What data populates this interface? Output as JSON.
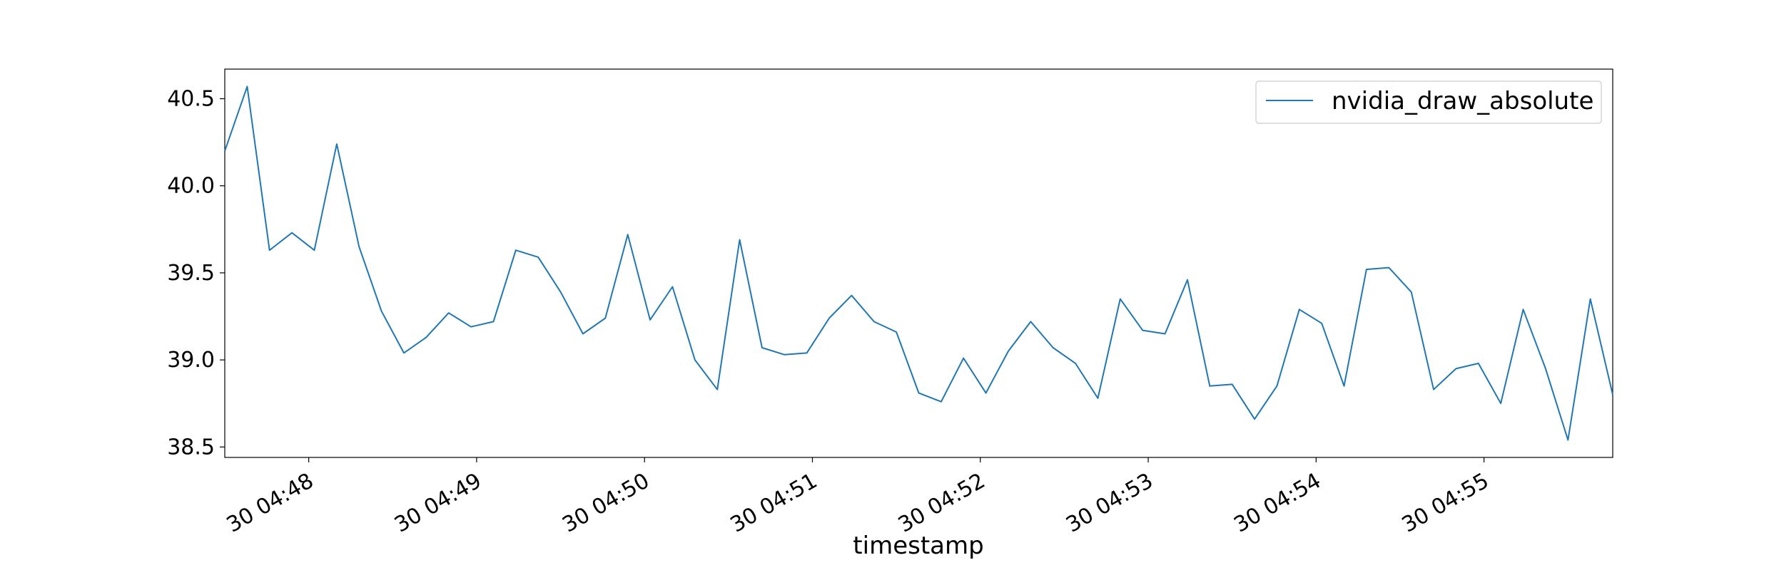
{
  "chart_data": {
    "type": "line",
    "title": "",
    "xlabel": "timestamp",
    "ylabel": "",
    "x_tick_labels": [
      "30 04:48",
      "30 04:49",
      "30 04:50",
      "30 04:51",
      "30 04:52",
      "30 04:53",
      "30 04:54",
      "30 04:55"
    ],
    "y_tick_labels": [
      "38.5",
      "39.0",
      "39.5",
      "40.0",
      "40.5"
    ],
    "y_ticks": [
      38.5,
      39.0,
      39.5,
      40.0,
      40.5
    ],
    "ylim": [
      38.44,
      40.67
    ],
    "legend": {
      "position": "top-right",
      "entries": [
        "nvidia_draw_absolute"
      ]
    },
    "grid": false,
    "line_color": "#1f77b4",
    "series": [
      {
        "name": "nvidia_draw_absolute",
        "x": [
          "04:47:30",
          "04:47:38",
          "04:47:46",
          "04:47:54",
          "04:48:02",
          "04:48:10",
          "04:48:18",
          "04:48:26",
          "04:48:34",
          "04:48:42",
          "04:48:50",
          "04:48:58",
          "04:49:06",
          "04:49:14",
          "04:49:22",
          "04:49:30",
          "04:49:38",
          "04:49:46",
          "04:49:54",
          "04:50:02",
          "04:50:10",
          "04:50:18",
          "04:50:26",
          "04:50:34",
          "04:50:42",
          "04:50:50",
          "04:50:58",
          "04:51:06",
          "04:51:14",
          "04:51:22",
          "04:51:30",
          "04:51:38",
          "04:51:46",
          "04:51:54",
          "04:52:02",
          "04:52:10",
          "04:52:18",
          "04:52:26",
          "04:52:34",
          "04:52:42",
          "04:52:50",
          "04:52:58",
          "04:53:06",
          "04:53:14",
          "04:53:22",
          "04:53:30",
          "04:53:38",
          "04:53:46",
          "04:53:54",
          "04:54:02",
          "04:54:10",
          "04:54:18",
          "04:54:26",
          "04:54:34",
          "04:54:42",
          "04:54:50",
          "04:54:58",
          "04:55:06",
          "04:55:14",
          "04:55:22",
          "04:55:30",
          "04:55:38",
          "04:55:46"
        ],
        "values": [
          40.2,
          40.57,
          39.63,
          39.73,
          39.63,
          40.24,
          39.65,
          39.28,
          39.04,
          39.13,
          39.27,
          39.19,
          39.22,
          39.63,
          39.59,
          39.39,
          39.15,
          39.24,
          39.72,
          39.23,
          39.42,
          39.0,
          38.83,
          39.69,
          39.07,
          39.03,
          39.04,
          39.24,
          39.37,
          39.22,
          39.16,
          38.81,
          38.76,
          39.01,
          38.81,
          39.05,
          39.22,
          39.07,
          38.98,
          38.78,
          39.35,
          39.17,
          39.15,
          39.46,
          38.85,
          38.86,
          38.66,
          38.85,
          39.29,
          39.21,
          38.85,
          39.52,
          39.53,
          39.39,
          38.83,
          38.95,
          38.98,
          38.75,
          39.29,
          38.95,
          38.54,
          39.35,
          38.8
        ]
      }
    ]
  }
}
